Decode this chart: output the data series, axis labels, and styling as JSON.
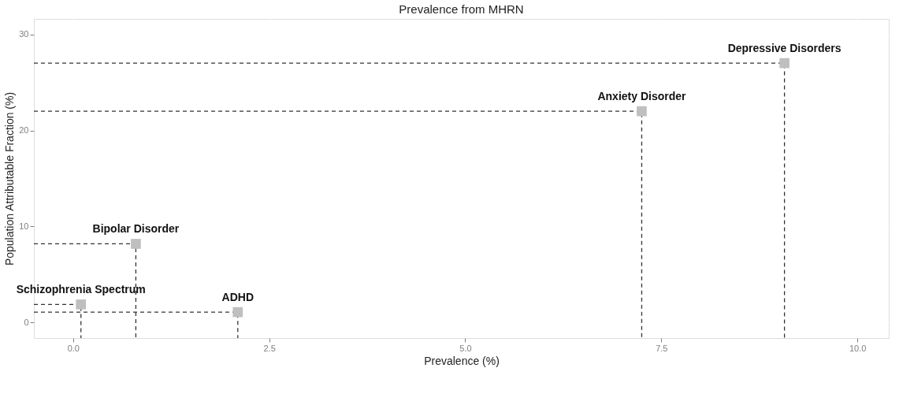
{
  "chart_data": {
    "type": "scatter",
    "title": "Prevalence from MHRN",
    "xlabel": "Prevalence (%)",
    "ylabel": "Population Attributable Fraction (%)",
    "x": [
      0.1,
      2.1,
      0.8,
      7.25,
      9.07
    ],
    "series": [
      {
        "type": "line",
        "color": "#333333",
        "line_style": "dashed",
        "marker": "none",
        "x": [
          -0.5,
          0.1,
          0.1
        ],
        "values": [
          1.9,
          1.9,
          -1.6
        ]
      },
      {
        "type": "line",
        "color": "#333333",
        "line_style": "dashed",
        "marker": "none",
        "x": [
          -0.5,
          2.1,
          2.1
        ],
        "values": [
          1.1,
          1.1,
          -1.6
        ]
      },
      {
        "type": "line",
        "color": "#333333",
        "line_style": "dashed",
        "marker": "none",
        "x": [
          -0.5,
          0.8,
          0.8
        ],
        "values": [
          8.2,
          8.2,
          -1.6
        ]
      },
      {
        "type": "line",
        "color": "#333333",
        "line_style": "dashed",
        "marker": "none",
        "x": [
          -0.5,
          7.25,
          7.25
        ],
        "values": [
          22.0,
          22.0,
          -1.6
        ]
      },
      {
        "type": "line",
        "color": "#333333",
        "line_style": "dashed",
        "marker": "none",
        "x": [
          -0.5,
          9.07,
          9.07
        ],
        "values": [
          27.0,
          27.0,
          -1.6
        ]
      },
      {
        "color": "#bfbfbf",
        "marker": "square",
        "values": [
          1.9,
          1.1,
          8.2,
          22.0,
          27.0
        ]
      }
    ],
    "annotations": [
      {
        "text": "Schizophrenia Spectrum",
        "x": 0.1,
        "y": 1.9
      },
      {
        "text": "ADHD",
        "x": 2.1,
        "y": 1.1
      },
      {
        "text": "Bipolar Disorder",
        "x": 0.8,
        "y": 8.2
      },
      {
        "text": "Anxiety Disorder",
        "x": 7.25,
        "y": 22.0
      },
      {
        "text": "Depressive Disorders",
        "x": 9.07,
        "y": 27.0
      }
    ],
    "xlim": [
      -0.5,
      10.4
    ],
    "xticks": [
      {
        "value": 0,
        "label": "0.0"
      },
      2.5,
      {
        "value": 5,
        "label": "5.0"
      },
      7.5,
      {
        "value": 10,
        "label": "10.0"
      }
    ],
    "ylim": [
      -1.6,
      31.6
    ],
    "yticks": [
      0,
      10,
      20,
      30
    ],
    "grid": true
  }
}
